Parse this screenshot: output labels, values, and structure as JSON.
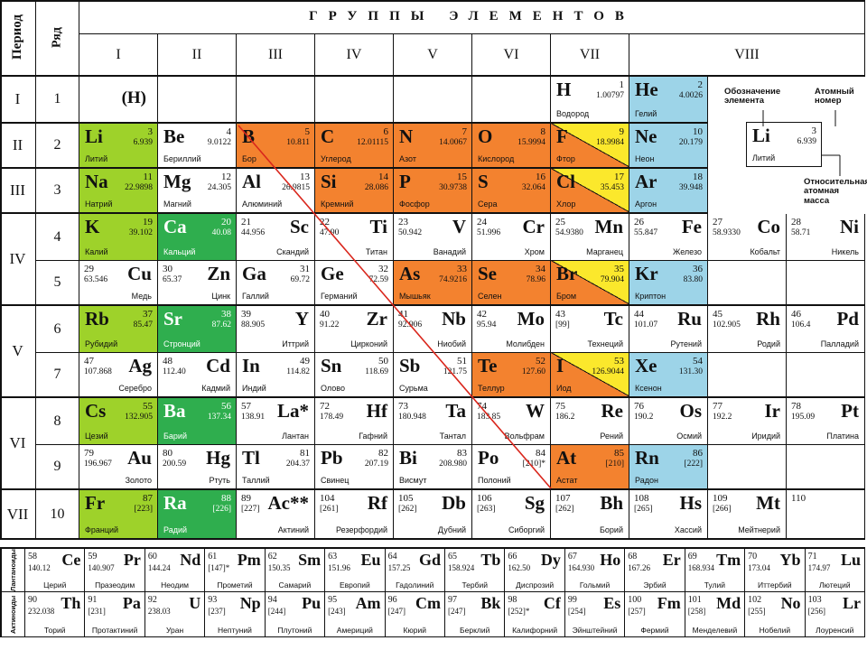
{
  "header": {
    "period": "Период",
    "row": "Ряд",
    "title": "ГРУППЫ ЭЛЕМЕНТОВ",
    "groups": [
      "I",
      "II",
      "III",
      "IV",
      "V",
      "VI",
      "VII",
      "VIII"
    ]
  },
  "periods": [
    {
      "label": "I",
      "rows": [
        {
          "label": 1,
          "cells": [
            {
              "symbol": "(H)"
            },
            null,
            null,
            null,
            null,
            null,
            {
              "symbol": "H",
              "number": 1,
              "mass": "1.00797",
              "name": "Водород"
            },
            {
              "symbol": "He",
              "number": 2,
              "mass": "4.0026",
              "name": "Гелий",
              "color": "#9dd4e8"
            },
            null,
            null
          ]
        }
      ]
    },
    {
      "label": "II",
      "rows": [
        {
          "label": 2,
          "cells": [
            {
              "symbol": "Li",
              "number": 3,
              "mass": "6.939",
              "name": "Литий",
              "color": "#9ed22a"
            },
            {
              "symbol": "Be",
              "number": 4,
              "mass": "9.0122",
              "name": "Бериллий"
            },
            {
              "symbol": "B",
              "number": 5,
              "mass": "10.811",
              "name": "Бор",
              "color": "#f3822f"
            },
            {
              "symbol": "C",
              "number": 6,
              "mass": "12.01115",
              "name": "Углерод",
              "color": "#f3822f"
            },
            {
              "symbol": "N",
              "number": 7,
              "mass": "14.0067",
              "name": "Азот",
              "color": "#f3822f"
            },
            {
              "symbol": "O",
              "number": 8,
              "mass": "15.9994",
              "name": "Кислород",
              "color": "#f3822f"
            },
            {
              "symbol": "F",
              "number": 9,
              "mass": "18.9984",
              "name": "Фтор",
              "colors": [
                "#f3822f",
                "#fbe82c"
              ]
            },
            {
              "symbol": "Ne",
              "number": 10,
              "mass": "20.179",
              "name": "Неон",
              "color": "#9dd4e8"
            },
            null,
            null
          ]
        }
      ]
    },
    {
      "label": "III",
      "rows": [
        {
          "label": 3,
          "cells": [
            {
              "symbol": "Na",
              "number": 11,
              "mass": "22.9898",
              "name": "Натрий",
              "color": "#9ed22a"
            },
            {
              "symbol": "Mg",
              "number": 12,
              "mass": "24.305",
              "name": "Магний"
            },
            {
              "symbol": "Al",
              "number": 13,
              "mass": "26.9815",
              "name": "Алюминий"
            },
            {
              "symbol": "Si",
              "number": 14,
              "mass": "28.086",
              "name": "Кремний",
              "color": "#f3822f"
            },
            {
              "symbol": "P",
              "number": 15,
              "mass": "30.9738",
              "name": "Фосфор",
              "color": "#f3822f"
            },
            {
              "symbol": "S",
              "number": 16,
              "mass": "32.064",
              "name": "Сера",
              "color": "#f3822f"
            },
            {
              "symbol": "Cl",
              "number": 17,
              "mass": "35.453",
              "name": "Хлор",
              "colors": [
                "#f3822f",
                "#fbe82c"
              ]
            },
            {
              "symbol": "Ar",
              "number": 18,
              "mass": "39.948",
              "name": "Аргон",
              "color": "#9dd4e8"
            },
            null,
            null
          ]
        }
      ]
    },
    {
      "label": "IV",
      "rows": [
        {
          "label": 4,
          "cells": [
            {
              "symbol": "K",
              "number": 19,
              "mass": "39.102",
              "name": "Калий",
              "color": "#9ed22a"
            },
            {
              "symbol": "Ca",
              "number": 20,
              "mass": "40.08",
              "name": "Кальций",
              "color": "#2fae4e"
            },
            {
              "symbol": "Sc",
              "number": 21,
              "mass": "44.956",
              "name": "Скандий"
            },
            {
              "symbol": "Ti",
              "number": 22,
              "mass": "47.90",
              "name": "Титан"
            },
            {
              "symbol": "V",
              "number": 23,
              "mass": "50.942",
              "name": "Ванадий"
            },
            {
              "symbol": "Cr",
              "number": 24,
              "mass": "51.996",
              "name": "Хром"
            },
            {
              "symbol": "Mn",
              "number": 25,
              "mass": "54.9380",
              "name": "Марганец"
            },
            {
              "symbol": "Fe",
              "number": 26,
              "mass": "55.847",
              "name": "Железо"
            },
            {
              "symbol": "Co",
              "number": 27,
              "mass": "58.9330",
              "name": "Кобальт"
            },
            {
              "symbol": "Ni",
              "number": 28,
              "mass": "58.71",
              "name": "Никель"
            }
          ]
        },
        {
          "label": 5,
          "cells": [
            {
              "symbol": "Cu",
              "number": 29,
              "mass": "63.546",
              "name": "Медь"
            },
            {
              "symbol": "Zn",
              "number": 30,
              "mass": "65.37",
              "name": "Цинк"
            },
            {
              "symbol": "Ga",
              "number": 31,
              "mass": "69.72",
              "name": "Галлий"
            },
            {
              "symbol": "Ge",
              "number": 32,
              "mass": "72.59",
              "name": "Германий"
            },
            {
              "symbol": "As",
              "number": 33,
              "mass": "74.9216",
              "name": "Мышьяк",
              "color": "#f3822f"
            },
            {
              "symbol": "Se",
              "number": 34,
              "mass": "78.96",
              "name": "Селен",
              "color": "#f3822f"
            },
            {
              "symbol": "Br",
              "number": 35,
              "mass": "79.904",
              "name": "Бром",
              "colors": [
                "#f3822f",
                "#fbe82c"
              ]
            },
            {
              "symbol": "Kr",
              "number": 36,
              "mass": "83.80",
              "name": "Криптон",
              "color": "#9dd4e8"
            },
            null,
            null
          ]
        }
      ]
    },
    {
      "label": "V",
      "rows": [
        {
          "label": 6,
          "cells": [
            {
              "symbol": "Rb",
              "number": 37,
              "mass": "85.47",
              "name": "Рубидий",
              "color": "#9ed22a"
            },
            {
              "symbol": "Sr",
              "number": 38,
              "mass": "87.62",
              "name": "Стронций",
              "color": "#2fae4e"
            },
            {
              "symbol": "Y",
              "number": 39,
              "mass": "88.905",
              "name": "Иттрий"
            },
            {
              "symbol": "Zr",
              "number": 40,
              "mass": "91.22",
              "name": "Цирконий"
            },
            {
              "symbol": "Nb",
              "number": 41,
              "mass": "92.906",
              "name": "Ниобий"
            },
            {
              "symbol": "Mo",
              "number": 42,
              "mass": "95.94",
              "name": "Молибден"
            },
            {
              "symbol": "Tc",
              "number": 43,
              "mass": "[99]",
              "name": "Технеций"
            },
            {
              "symbol": "Ru",
              "number": 44,
              "mass": "101.07",
              "name": "Рутений"
            },
            {
              "symbol": "Rh",
              "number": 45,
              "mass": "102.905",
              "name": "Родий"
            },
            {
              "symbol": "Pd",
              "number": 46,
              "mass": "106.4",
              "name": "Палладий"
            }
          ]
        },
        {
          "label": 7,
          "cells": [
            {
              "symbol": "Ag",
              "number": 47,
              "mass": "107.868",
              "name": "Серебро"
            },
            {
              "symbol": "Cd",
              "number": 48,
              "mass": "112.40",
              "name": "Кадмий"
            },
            {
              "symbol": "In",
              "number": 49,
              "mass": "114.82",
              "name": "Индий"
            },
            {
              "symbol": "Sn",
              "number": 50,
              "mass": "118.69",
              "name": "Олово"
            },
            {
              "symbol": "Sb",
              "number": 51,
              "mass": "121.75",
              "name": "Сурьма"
            },
            {
              "symbol": "Te",
              "number": 52,
              "mass": "127.60",
              "name": "Теллур",
              "color": "#f3822f"
            },
            {
              "symbol": "I",
              "number": 53,
              "mass": "126.9044",
              "name": "Иод",
              "colors": [
                "#f3822f",
                "#fbe82c"
              ]
            },
            {
              "symbol": "Xe",
              "number": 54,
              "mass": "131.30",
              "name": "Ксенон",
              "color": "#9dd4e8"
            },
            null,
            null
          ]
        }
      ]
    },
    {
      "label": "VI",
      "rows": [
        {
          "label": 8,
          "cells": [
            {
              "symbol": "Cs",
              "number": 55,
              "mass": "132.905",
              "name": "Цезий",
              "color": "#9ed22a"
            },
            {
              "symbol": "Ba",
              "number": 56,
              "mass": "137.34",
              "name": "Барий",
              "color": "#2fae4e"
            },
            {
              "symbol": "La*",
              "number": 57,
              "mass": "138.91",
              "name": "Лантан"
            },
            {
              "symbol": "Hf",
              "number": 72,
              "mass": "178.49",
              "name": "Гафний"
            },
            {
              "symbol": "Ta",
              "number": 73,
              "mass": "180.948",
              "name": "Тантал"
            },
            {
              "symbol": "W",
              "number": 74,
              "mass": "183.85",
              "name": "Вольфрам"
            },
            {
              "symbol": "Re",
              "number": 75,
              "mass": "186.2",
              "name": "Рений"
            },
            {
              "symbol": "Os",
              "number": 76,
              "mass": "190.2",
              "name": "Осмий"
            },
            {
              "symbol": "Ir",
              "number": 77,
              "mass": "192.2",
              "name": "Иридий"
            },
            {
              "symbol": "Pt",
              "number": 78,
              "mass": "195.09",
              "name": "Платина"
            }
          ]
        },
        {
          "label": 9,
          "cells": [
            {
              "symbol": "Au",
              "number": 79,
              "mass": "196.967",
              "name": "Золото"
            },
            {
              "symbol": "Hg",
              "number": 80,
              "mass": "200.59",
              "name": "Ртуть"
            },
            {
              "symbol": "Tl",
              "number": 81,
              "mass": "204.37",
              "name": "Таллий"
            },
            {
              "symbol": "Pb",
              "number": 82,
              "mass": "207.19",
              "name": "Свинец"
            },
            {
              "symbol": "Bi",
              "number": 83,
              "mass": "208.980",
              "name": "Висмут"
            },
            {
              "symbol": "Po",
              "number": 84,
              "mass": "[210]*",
              "name": "Полоний"
            },
            {
              "symbol": "At",
              "number": 85,
              "mass": "[210]",
              "name": "Астат",
              "color": "#f3822f"
            },
            {
              "symbol": "Rn",
              "number": 86,
              "mass": "[222]",
              "name": "Радон",
              "color": "#9dd4e8"
            },
            null,
            null
          ]
        }
      ]
    },
    {
      "label": "VII",
      "rows": [
        {
          "label": 10,
          "cells": [
            {
              "symbol": "Fr",
              "number": 87,
              "mass": "[223]",
              "name": "Франций",
              "color": "#9ed22a"
            },
            {
              "symbol": "Ra",
              "number": 88,
              "mass": "[226]",
              "name": "Радий",
              "color": "#2fae4e"
            },
            {
              "symbol": "Ac**",
              "number": 89,
              "mass": "[227]",
              "name": "Актиний"
            },
            {
              "symbol": "Rf",
              "number": 104,
              "mass": "[261]",
              "name": "Резерфордий"
            },
            {
              "symbol": "Db",
              "number": 105,
              "mass": "[262]",
              "name": "Дубний"
            },
            {
              "symbol": "Sg",
              "number": 106,
              "mass": "[263]",
              "name": "Сиборгий"
            },
            {
              "symbol": "Bh",
              "number": 107,
              "mass": "[262]",
              "name": "Борий"
            },
            {
              "symbol": "Hs",
              "number": 108,
              "mass": "[265]",
              "name": "Хассий"
            },
            {
              "symbol": "Mt",
              "number": 109,
              "mass": "[266]",
              "name": "Мейтнерий"
            },
            {
              "number": 110
            }
          ]
        }
      ]
    }
  ],
  "key": {
    "symbol_caption": "Обозначение элемента",
    "number_caption": "Атомный номер",
    "mass_caption": "Относительная атомная масса",
    "example": {
      "symbol": "Li",
      "number": 3,
      "mass": "6.939",
      "name": "Литий"
    }
  },
  "rare_earths": [
    {
      "label": "Лантаноиды",
      "cells": [
        {
          "symbol": "Ce",
          "number": 58,
          "mass": "140.12",
          "name": "Церий"
        },
        {
          "symbol": "Pr",
          "number": 59,
          "mass": "140.907",
          "name": "Празеодим"
        },
        {
          "symbol": "Nd",
          "number": 60,
          "mass": "144.24",
          "name": "Неодим"
        },
        {
          "symbol": "Pm",
          "number": 61,
          "mass": "[147]*",
          "name": "Прометий"
        },
        {
          "symbol": "Sm",
          "number": 62,
          "mass": "150.35",
          "name": "Самарий"
        },
        {
          "symbol": "Eu",
          "number": 63,
          "mass": "151.96",
          "name": "Европий"
        },
        {
          "symbol": "Gd",
          "number": 64,
          "mass": "157.25",
          "name": "Гадолиний"
        },
        {
          "symbol": "Tb",
          "number": 65,
          "mass": "158.924",
          "name": "Тербий"
        },
        {
          "symbol": "Dy",
          "number": 66,
          "mass": "162.50",
          "name": "Диспрозий"
        },
        {
          "symbol": "Ho",
          "number": 67,
          "mass": "164.930",
          "name": "Гольмий"
        },
        {
          "symbol": "Er",
          "number": 68,
          "mass": "167.26",
          "name": "Эрбий"
        },
        {
          "symbol": "Tm",
          "number": 69,
          "mass": "168.934",
          "name": "Тулий"
        },
        {
          "symbol": "Yb",
          "number": 70,
          "mass": "173.04",
          "name": "Иттербий"
        },
        {
          "symbol": "Lu",
          "number": 71,
          "mass": "174.97",
          "name": "Лютеций"
        }
      ]
    },
    {
      "label": "Актиноиды",
      "cells": [
        {
          "symbol": "Th",
          "number": 90,
          "mass": "232.038",
          "name": "Торий"
        },
        {
          "symbol": "Pa",
          "number": 91,
          "mass": "[231]",
          "name": "Протактиний"
        },
        {
          "symbol": "U",
          "number": 92,
          "mass": "238.03",
          "name": "Уран"
        },
        {
          "symbol": "Np",
          "number": 93,
          "mass": "[237]",
          "name": "Нептуний"
        },
        {
          "symbol": "Pu",
          "number": 94,
          "mass": "[244]",
          "name": "Плутоний"
        },
        {
          "symbol": "Am",
          "number": 95,
          "mass": "[243]",
          "name": "Америций"
        },
        {
          "symbol": "Cm",
          "number": 96,
          "mass": "[247]",
          "name": "Кюрий"
        },
        {
          "symbol": "Bk",
          "number": 97,
          "mass": "[247]",
          "name": "Берклий"
        },
        {
          "symbol": "Cf",
          "number": 98,
          "mass": "[252]*",
          "name": "Калифорний"
        },
        {
          "symbol": "Es",
          "number": 99,
          "mass": "[254]",
          "name": "Эйнштейний"
        },
        {
          "symbol": "Fm",
          "number": 100,
          "mass": "[257]",
          "name": "Фермий"
        },
        {
          "symbol": "Md",
          "number": 101,
          "mass": "[258]",
          "name": "Менделевий"
        },
        {
          "symbol": "No",
          "number": 102,
          "mass": "[255]",
          "name": "Нобелий"
        },
        {
          "symbol": "Lr",
          "number": 103,
          "mass": "[256]",
          "name": "Лоуренсий"
        }
      ]
    }
  ]
}
